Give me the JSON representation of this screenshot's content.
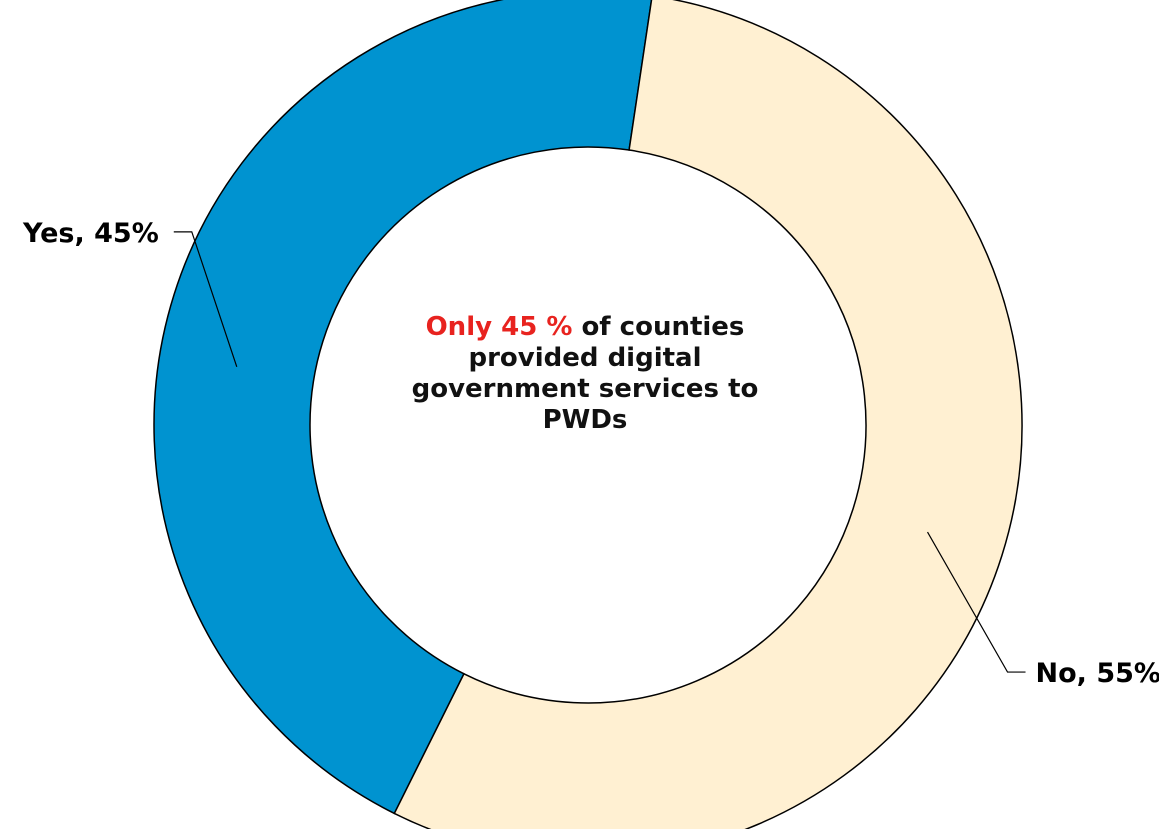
{
  "chart_data": {
    "type": "pie",
    "style": "donut",
    "categories": [
      "Yes",
      "No"
    ],
    "values": [
      45,
      55
    ],
    "unit": "%",
    "colors": [
      "#0093D0",
      "#FFF0D2"
    ],
    "data_labels": [
      "Yes, 45%",
      "No, 55%"
    ],
    "legend": "none",
    "center_text": {
      "highlight": "Only 45 %",
      "rest": " of counties provided digital government services to PWDs",
      "highlight_color": "#E8231F"
    }
  }
}
